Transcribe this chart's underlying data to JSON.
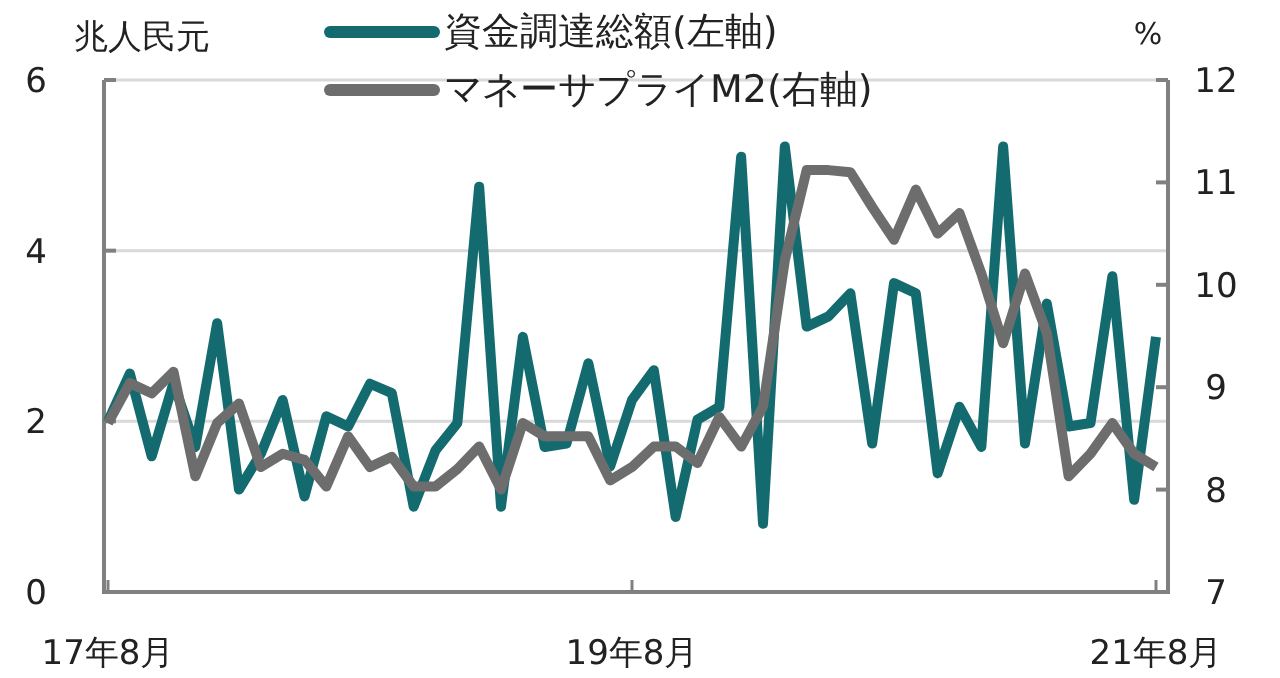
{
  "chart_data": {
    "type": "line",
    "ylabel": "兆人民元",
    "y2label": "%",
    "categories": [
      "17年8月",
      null,
      null,
      null,
      null,
      null,
      null,
      null,
      null,
      null,
      null,
      null,
      null,
      null,
      null,
      null,
      null,
      null,
      null,
      null,
      null,
      null,
      null,
      null,
      "19年8月",
      null,
      null,
      null,
      null,
      null,
      null,
      null,
      null,
      null,
      null,
      null,
      null,
      null,
      null,
      null,
      null,
      null,
      null,
      null,
      null,
      null,
      null,
      null,
      "21年8月"
    ],
    "series": [
      {
        "name": "資金調達総額(左軸)",
        "color": "#136b6f",
        "values": [
          2.0,
          2.56,
          1.59,
          2.45,
          1.7,
          3.15,
          1.2,
          1.62,
          2.25,
          1.12,
          2.06,
          1.94,
          2.44,
          2.33,
          1.0,
          1.66,
          1.98,
          4.75,
          1.0,
          2.99,
          1.7,
          1.74,
          2.68,
          1.47,
          2.25,
          2.6,
          0.88,
          2.02,
          2.17,
          5.1,
          0.8,
          5.22,
          3.11,
          3.23,
          3.5,
          1.74,
          3.62,
          3.5,
          1.39,
          2.17,
          1.7,
          5.22,
          1.74,
          3.38,
          1.94,
          1.98,
          3.7,
          1.08,
          2.99
        ]
      },
      {
        "name": "マネーサプライM2(右軸)",
        "color": "#6d6d6d",
        "axis": "y2",
        "values": [
          8.65,
          9.04,
          8.94,
          9.15,
          8.13,
          8.65,
          8.84,
          8.22,
          8.35,
          8.29,
          8.03,
          8.52,
          8.22,
          8.32,
          8.03,
          8.03,
          8.2,
          8.42,
          8.0,
          8.65,
          8.52,
          8.52,
          8.52,
          8.09,
          8.22,
          8.42,
          8.42,
          8.26,
          8.71,
          8.42,
          8.81,
          10.24,
          11.12,
          11.12,
          11.1,
          10.76,
          10.44,
          10.93,
          10.5,
          10.7,
          10.11,
          9.43,
          10.11,
          9.53,
          8.13,
          8.35,
          8.65,
          8.35,
          8.22
        ]
      }
    ],
    "ylim": [
      0,
      6
    ],
    "yticks": [
      0,
      2,
      4,
      6
    ],
    "y2lim": [
      7,
      12
    ],
    "y2ticks": [
      7,
      8,
      9,
      10,
      11,
      12
    ],
    "grid": "y",
    "legend": "top",
    "line_style": "solid",
    "marker": "none"
  }
}
